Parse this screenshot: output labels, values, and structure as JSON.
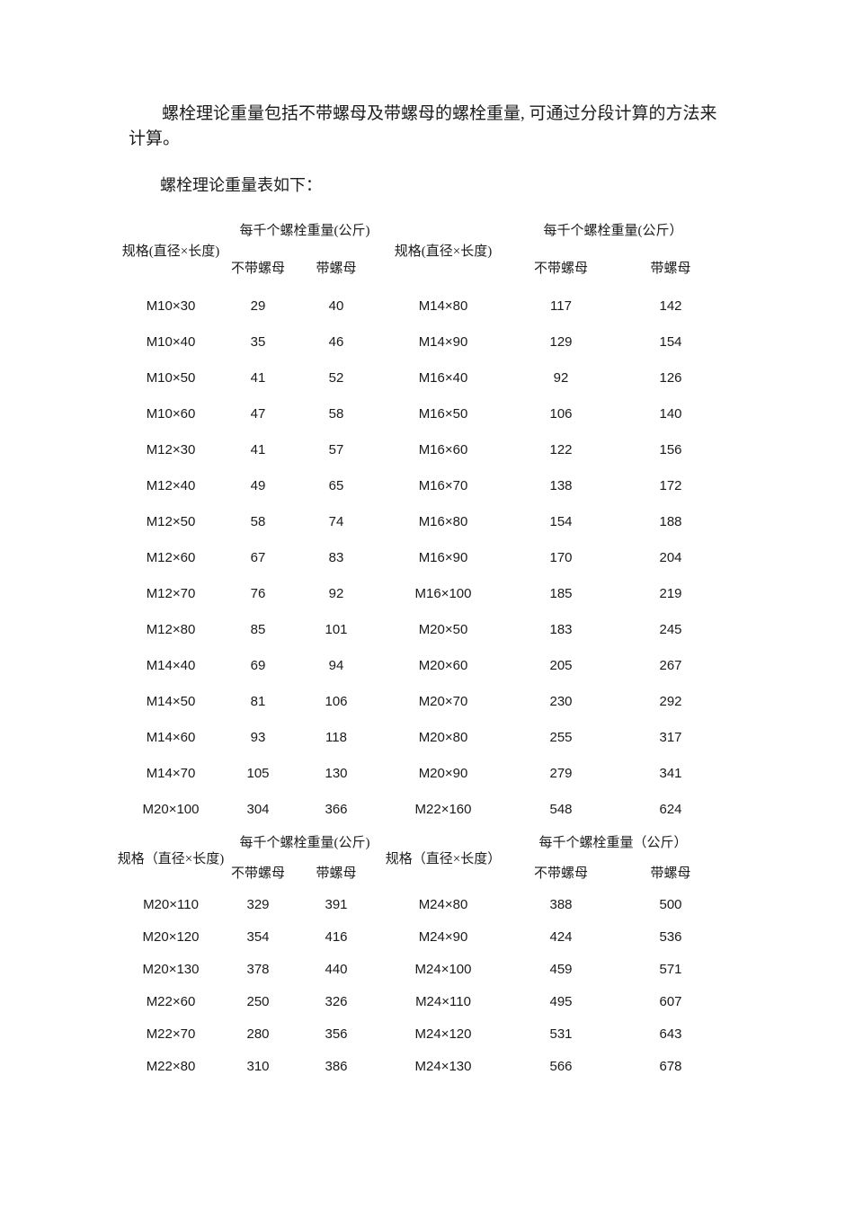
{
  "paragraphs": {
    "intro": "螺栓理论重量包括不带螺母及带螺母的螺栓重量, 可通过分段计算的方法来\n计算。",
    "caption": "螺栓理论重量表如下："
  },
  "tables": [
    {
      "headers": {
        "spec_left": "规格(直径×长度)",
        "weight_left": "每千个螺栓重量(公斤)",
        "spec_right": "规格(直径×长度)",
        "weight_right": "每千个螺栓重量(公斤）",
        "without_nut": "不带螺母",
        "with_nut": "带螺母"
      },
      "rows": [
        [
          "M10×30",
          "29",
          "40",
          "M14×80",
          "117",
          "142"
        ],
        [
          "M10×40",
          "35",
          "46",
          "M14×90",
          "129",
          "154"
        ],
        [
          "M10×50",
          "41",
          "52",
          "M16×40",
          "92",
          "126"
        ],
        [
          "M10×60",
          "47",
          "58",
          "M16×50",
          "106",
          "140"
        ],
        [
          "M12×30",
          "41",
          "57",
          "M16×60",
          "122",
          "156"
        ],
        [
          "M12×40",
          "49",
          "65",
          "M16×70",
          "138",
          "172"
        ],
        [
          "M12×50",
          "58",
          "74",
          "M16×80",
          "154",
          "188"
        ],
        [
          "M12×60",
          "67",
          "83",
          "M16×90",
          "170",
          "204"
        ],
        [
          "M12×70",
          "76",
          "92",
          "M16×100",
          "185",
          "219"
        ],
        [
          "M12×80",
          "85",
          "101",
          "M20×50",
          "183",
          "245"
        ],
        [
          "M14×40",
          "69",
          "94",
          "M20×60",
          "205",
          "267"
        ],
        [
          "M14×50",
          "81",
          "106",
          "M20×70",
          "230",
          "292"
        ],
        [
          "M14×60",
          "93",
          "118",
          "M20×80",
          "255",
          "317"
        ],
        [
          "M14×70",
          "105",
          "130",
          "M20×90",
          "279",
          "341"
        ],
        [
          "M20×100",
          "304",
          "366",
          "M22×160",
          "548",
          "624"
        ]
      ]
    },
    {
      "headers": {
        "spec_left": "规格（直径×长度)",
        "weight_left": "每千个螺栓重量(公斤)",
        "spec_right": "规格（直径×长度）",
        "weight_right": "每千个螺栓重量（公斤）",
        "without_nut": "不带螺母",
        "with_nut": "带螺母"
      },
      "rows": [
        [
          "M20×110",
          "329",
          "391",
          "M24×80",
          "388",
          "500"
        ],
        [
          "M20×120",
          "354",
          "416",
          "M24×90",
          "424",
          "536"
        ],
        [
          "M20×130",
          "378",
          "440",
          "M24×100",
          "459",
          "571"
        ],
        [
          "M22×60",
          "250",
          "326",
          "M24×110",
          "495",
          "607"
        ],
        [
          "M22×70",
          "280",
          "356",
          "M24×120",
          "531",
          "643"
        ],
        [
          "M22×80",
          "310",
          "386",
          "M24×130",
          "566",
          "678"
        ]
      ]
    }
  ]
}
